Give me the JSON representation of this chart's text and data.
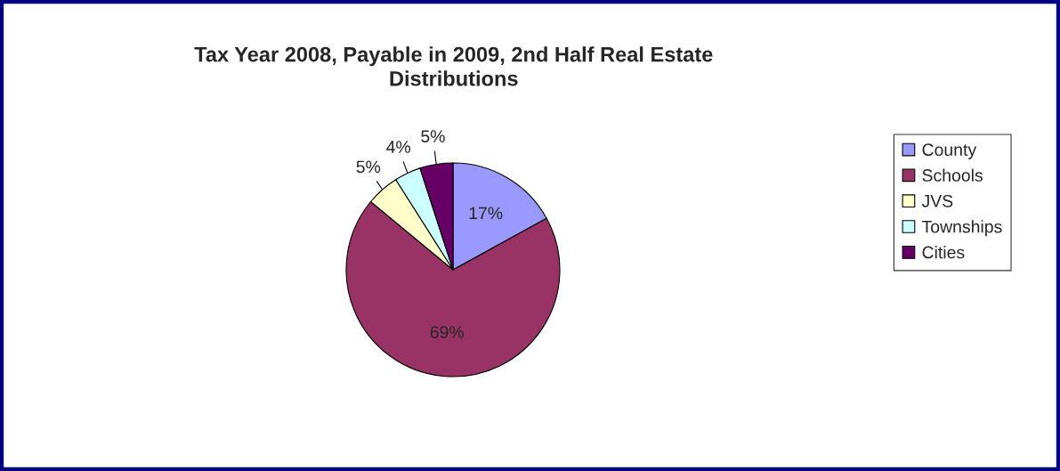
{
  "chart_data": {
    "type": "pie",
    "title": "Tax Year 2008, Payable in 2009, 2nd Half Real Estate\nDistributions",
    "categories": [
      "County",
      "Schools",
      "JVS",
      "Townships",
      "Cities"
    ],
    "values": [
      17,
      69,
      5,
      4,
      5
    ],
    "colors": [
      "#9999ff",
      "#993366",
      "#ffffcc",
      "#ccffff",
      "#660066"
    ],
    "value_labels": [
      "17%",
      "69%",
      "5%",
      "4%",
      "5%"
    ],
    "legend": "right"
  }
}
